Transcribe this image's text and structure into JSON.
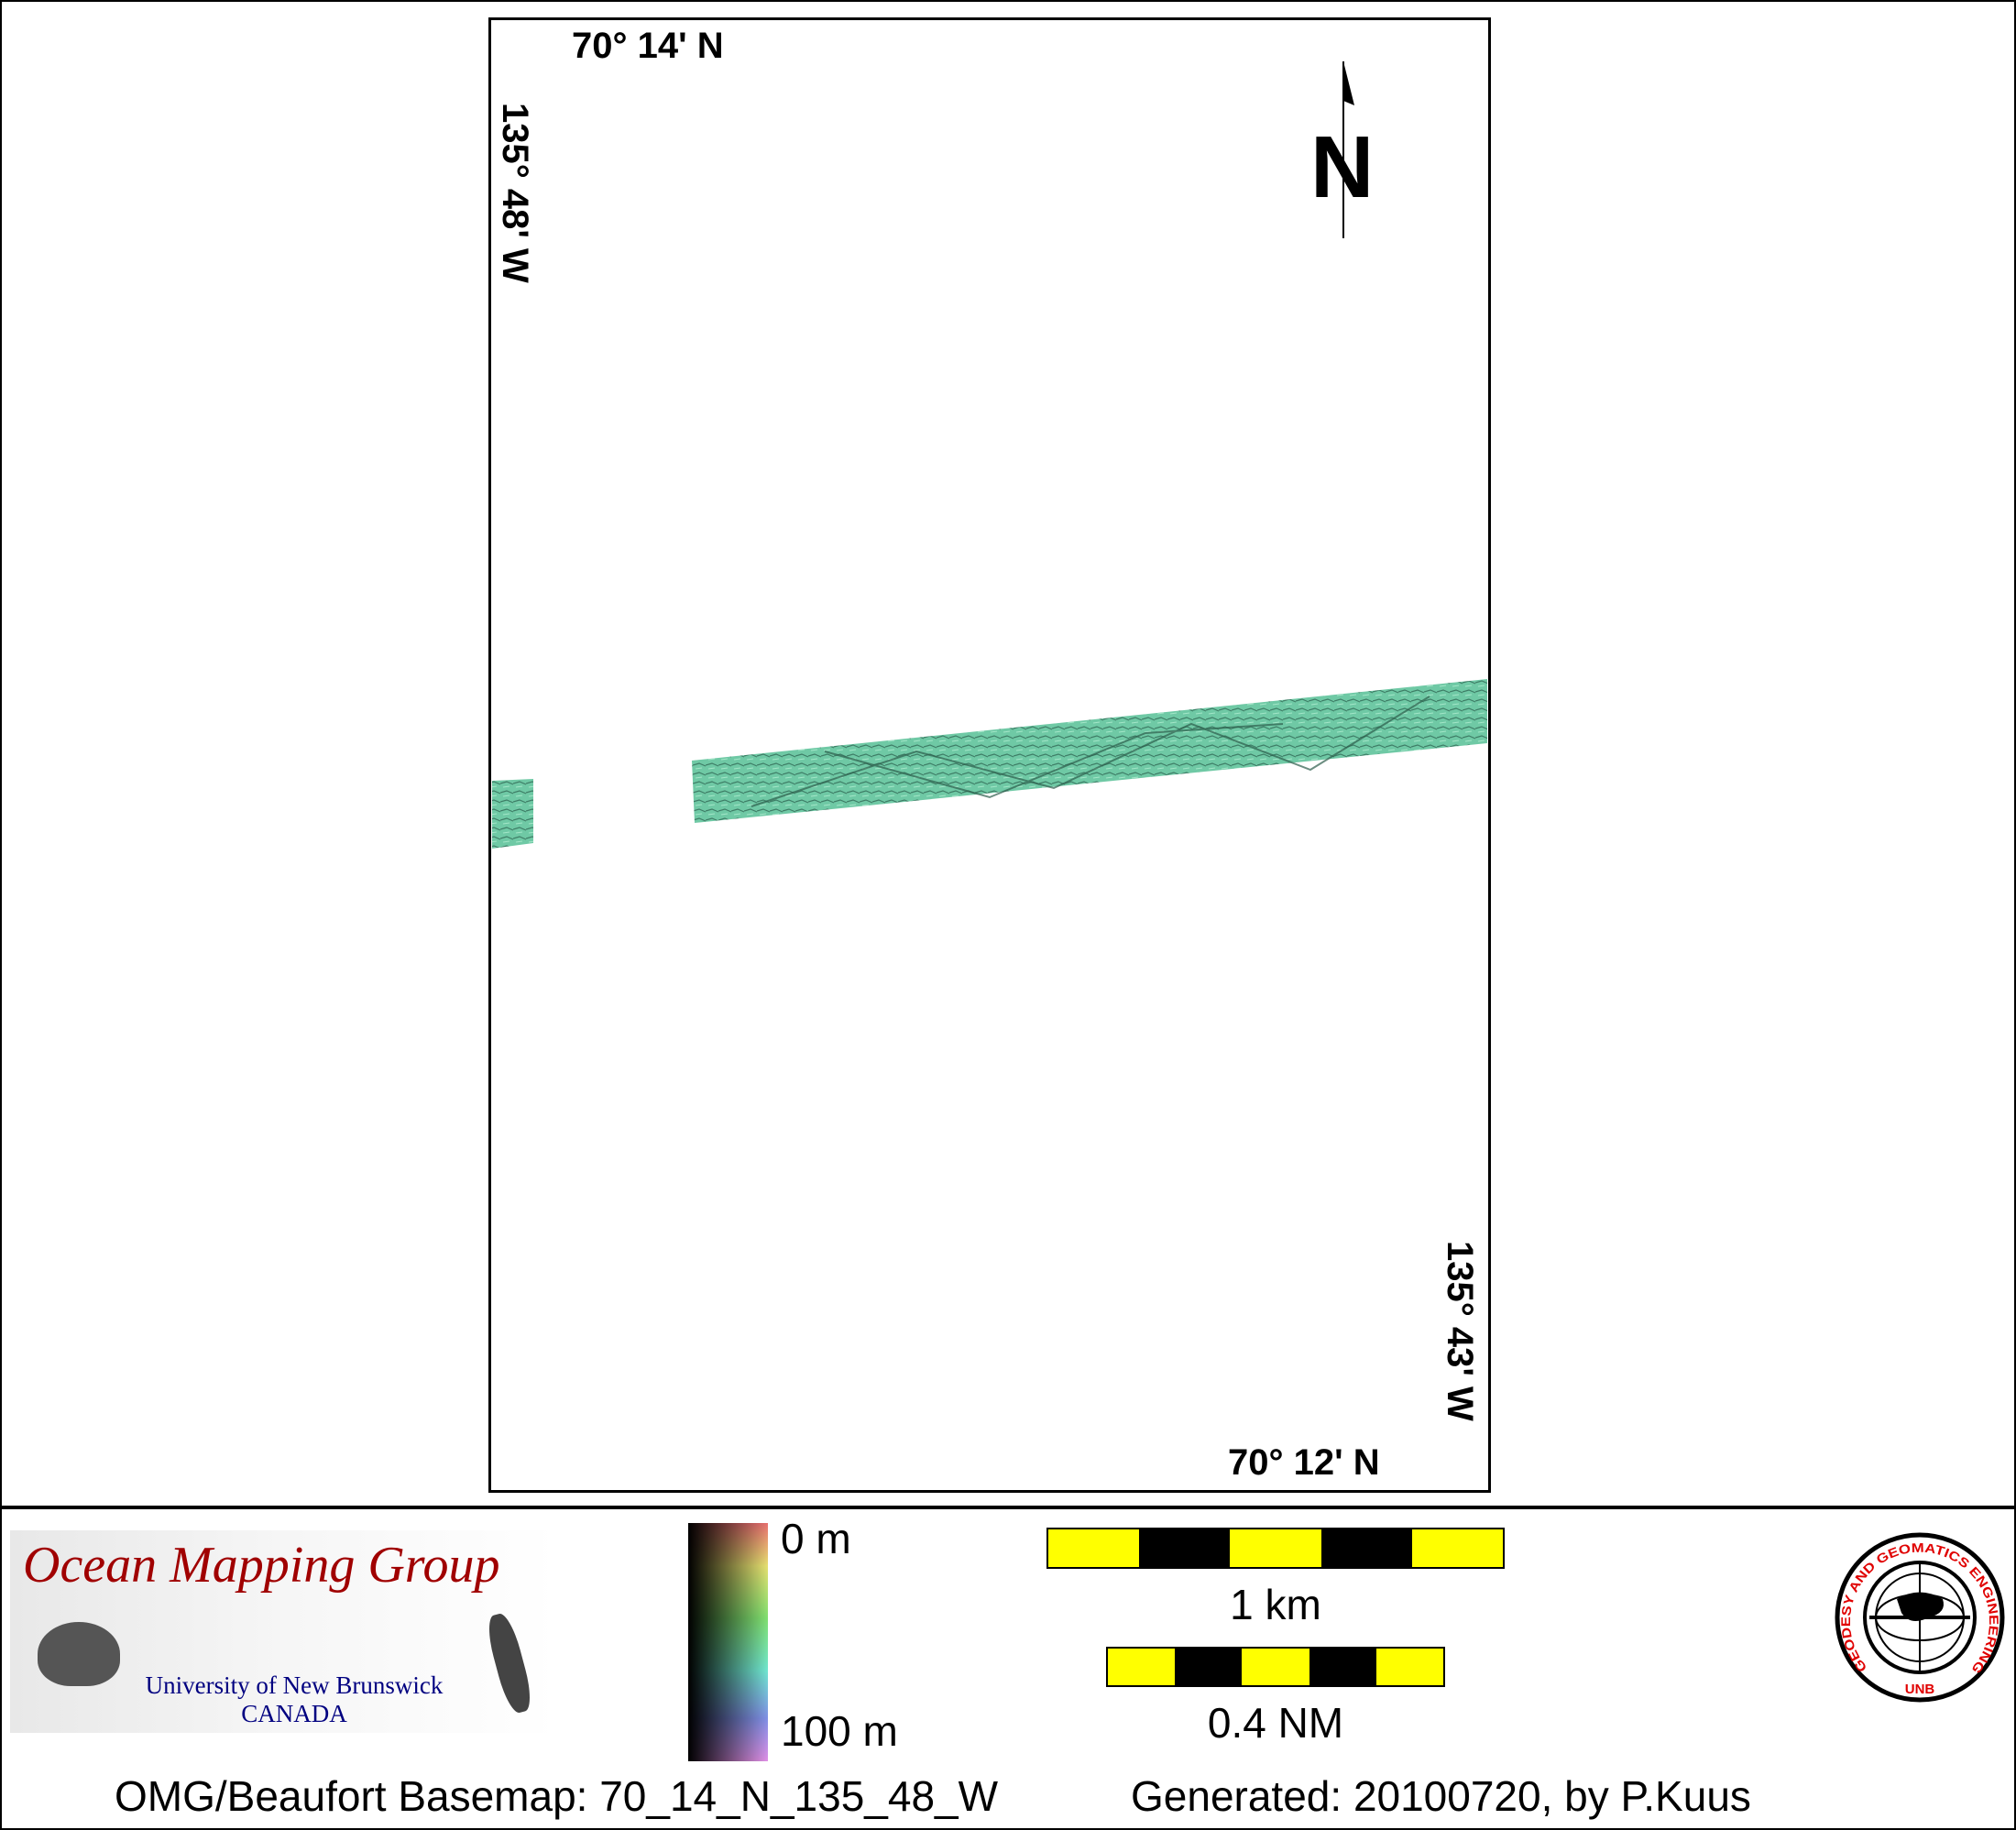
{
  "map": {
    "top_left_lat": "70° 14' N",
    "left_lon": "135° 48' W",
    "right_lon": "135° 43' W",
    "bottom_right_lat": "70° 12' N",
    "north_label": "N",
    "swath_color": "#6fc9a5"
  },
  "legend": {
    "logo_title": "Ocean Mapping Group",
    "logo_sub1": "University of New Brunswick",
    "logo_sub2": "CANADA",
    "colorbar_top": "0 m",
    "colorbar_bottom": "100 m",
    "scale_km": "1 km",
    "scale_nm": "0.4 NM",
    "scale_colors": [
      "#ffff00",
      "#000000"
    ],
    "unb_logo_text": "GEODESY AND GEOMATICS ENGINEERING",
    "unb_logo_bottom": "UNB"
  },
  "footer": {
    "basemap": "OMG/Beaufort Basemap: 70_14_N_135_48_W",
    "generated": "Generated: 20100720, by P.Kuus"
  }
}
